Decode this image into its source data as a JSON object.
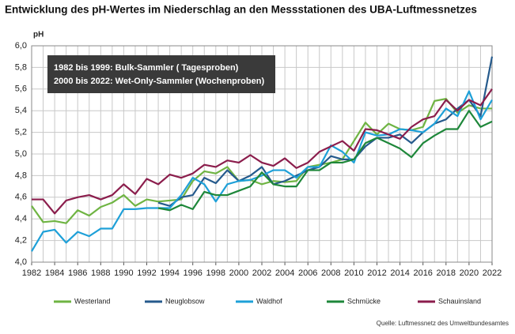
{
  "chart_data": {
    "type": "line",
    "title": "Entwicklung des pH-Wertes im Niederschlag an den Messstationen des UBA-Luftmessnetzes",
    "y_label": "pH",
    "annotations": [
      "1982 bis 1999: Bulk-Sammler ( Tagesproben)",
      "2000 bis 2022: Wet-Only-Sammler (Wochenproben)"
    ],
    "source": "Quelle: Luftmessnetz des Umweltbundesamtes",
    "x": [
      1982,
      1983,
      1984,
      1985,
      1986,
      1987,
      1988,
      1989,
      1990,
      1991,
      1992,
      1993,
      1994,
      1995,
      1996,
      1997,
      1998,
      1999,
      2000,
      2001,
      2002,
      2003,
      2004,
      2005,
      2006,
      2007,
      2008,
      2009,
      2010,
      2011,
      2012,
      2013,
      2014,
      2015,
      2016,
      2017,
      2018,
      2019,
      2020,
      2021,
      2022
    ],
    "xlim": [
      1982,
      2022
    ],
    "xticks": [
      1982,
      1984,
      1986,
      1988,
      1990,
      1992,
      1994,
      1996,
      1998,
      2000,
      2002,
      2004,
      2006,
      2008,
      2010,
      2012,
      2014,
      2016,
      2018,
      2020,
      2022
    ],
    "ylim": [
      4.0,
      6.0
    ],
    "yticks": [
      {
        "value": 4.0,
        "label": "4,0"
      },
      {
        "value": 4.2,
        "label": "4,2"
      },
      {
        "value": 4.4,
        "label": "4,4"
      },
      {
        "value": 4.6,
        "label": "4,6"
      },
      {
        "value": 4.8,
        "label": "4,8"
      },
      {
        "value": 5.0,
        "label": "5,0"
      },
      {
        "value": 5.2,
        "label": "5,2"
      },
      {
        "value": 5.4,
        "label": "5,4"
      },
      {
        "value": 5.6,
        "label": "5,6"
      },
      {
        "value": 5.8,
        "label": "5,8"
      },
      {
        "value": 6.0,
        "label": "6,0"
      }
    ],
    "grid": true,
    "legend": "bottom",
    "series": [
      {
        "name": "Westerland",
        "color": "#6fb443",
        "values": [
          4.52,
          4.37,
          4.38,
          4.36,
          4.48,
          4.43,
          4.51,
          4.55,
          4.62,
          4.52,
          4.58,
          4.56,
          4.57,
          4.58,
          4.75,
          4.84,
          4.82,
          4.88,
          4.75,
          4.76,
          4.72,
          4.75,
          4.74,
          4.75,
          4.88,
          4.9,
          4.92,
          4.95,
          5.12,
          5.29,
          5.18,
          5.28,
          5.23,
          5.22,
          5.25,
          5.49,
          5.51,
          5.38,
          5.45,
          5.42,
          5.42
        ]
      },
      {
        "name": "Neuglobsow",
        "color": "#255a8c",
        "values": [
          null,
          null,
          null,
          null,
          null,
          null,
          null,
          null,
          null,
          null,
          null,
          4.55,
          4.52,
          4.6,
          4.62,
          4.78,
          4.73,
          4.85,
          4.75,
          4.8,
          4.88,
          4.72,
          4.75,
          4.8,
          4.85,
          4.88,
          4.98,
          4.95,
          4.95,
          5.07,
          5.15,
          5.15,
          5.18,
          5.1,
          5.2,
          5.28,
          5.32,
          5.42,
          5.5,
          5.35,
          5.9
        ]
      },
      {
        "name": "Waldhof",
        "color": "#1ea0d8",
        "values": [
          4.1,
          4.28,
          4.3,
          4.18,
          4.28,
          4.24,
          4.31,
          4.31,
          4.49,
          4.49,
          4.5,
          4.5,
          4.5,
          4.62,
          4.78,
          4.72,
          4.56,
          4.72,
          4.75,
          4.76,
          4.8,
          4.85,
          4.85,
          4.78,
          4.88,
          4.88,
          5.08,
          5.02,
          4.92,
          5.2,
          5.17,
          5.18,
          5.23,
          5.22,
          5.2,
          5.28,
          5.42,
          5.35,
          5.58,
          5.32,
          5.5
        ]
      },
      {
        "name": "Schmücke",
        "color": "#1e873a",
        "values": [
          null,
          null,
          null,
          null,
          null,
          null,
          null,
          null,
          null,
          null,
          null,
          4.5,
          4.48,
          4.53,
          4.49,
          4.65,
          4.62,
          4.62,
          4.66,
          4.7,
          4.83,
          4.72,
          4.7,
          4.7,
          4.85,
          4.85,
          4.92,
          4.92,
          4.95,
          5.1,
          5.15,
          5.1,
          5.05,
          4.97,
          5.1,
          5.17,
          5.23,
          5.23,
          5.4,
          5.25,
          5.3
        ]
      },
      {
        "name": "Schauinsland",
        "color": "#8b1d4c",
        "values": [
          4.58,
          4.58,
          4.45,
          4.57,
          4.6,
          4.62,
          4.58,
          4.62,
          4.72,
          4.63,
          4.77,
          4.72,
          4.81,
          4.78,
          4.82,
          4.9,
          4.88,
          4.94,
          4.92,
          4.99,
          4.92,
          4.89,
          4.96,
          4.87,
          4.92,
          5.02,
          5.07,
          5.12,
          5.03,
          5.23,
          5.22,
          5.18,
          5.14,
          5.25,
          5.32,
          5.35,
          5.5,
          5.4,
          5.5,
          5.45,
          5.6
        ]
      }
    ]
  }
}
